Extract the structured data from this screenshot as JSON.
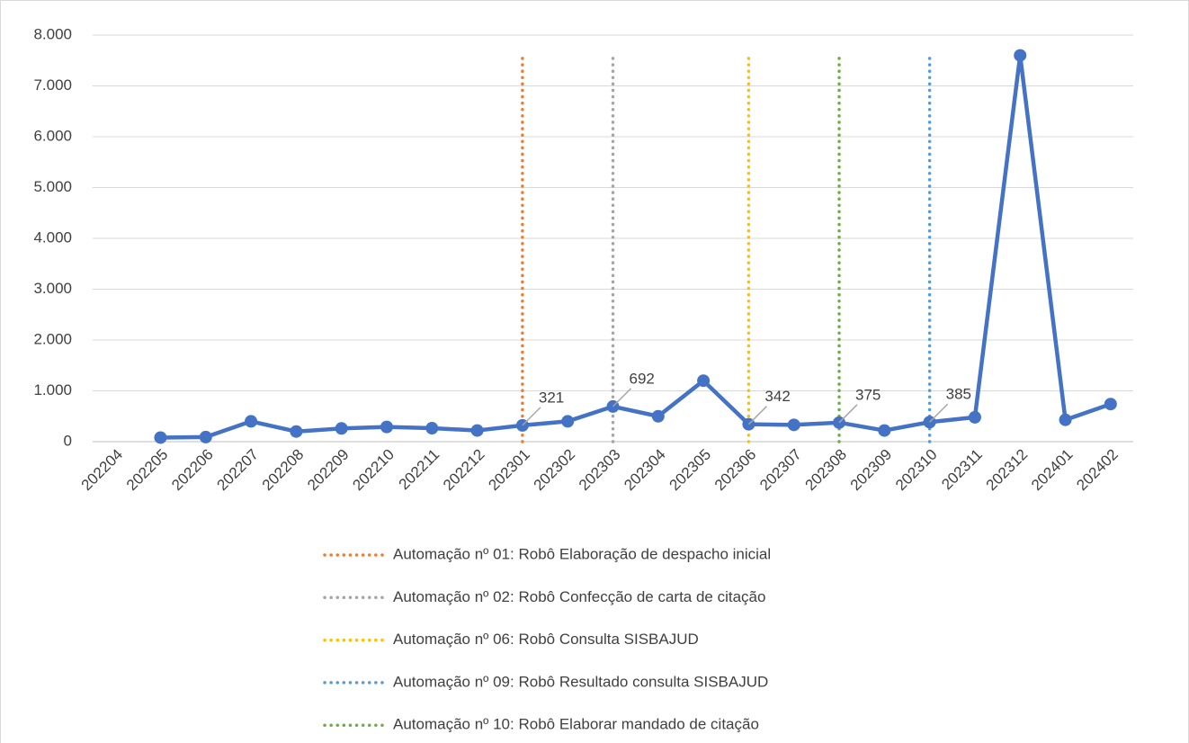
{
  "chart_data": {
    "type": "line",
    "categories": [
      "202204",
      "202205",
      "202206",
      "202207",
      "202208",
      "202209",
      "202210",
      "202211",
      "202212",
      "202301",
      "202302",
      "202303",
      "202304",
      "202305",
      "202306",
      "202307",
      "202308",
      "202309",
      "202310",
      "202311",
      "202312",
      "202401",
      "202402"
    ],
    "series": [
      {
        "name": null,
        "color": "#4472c4",
        "values": [
          null,
          80,
          90,
          400,
          200,
          260,
          290,
          265,
          220,
          321,
          400,
          692,
          500,
          1200,
          342,
          330,
          375,
          220,
          385,
          480,
          7600,
          430,
          740
        ],
        "data_labels": [
          null,
          null,
          null,
          null,
          null,
          null,
          null,
          null,
          null,
          true,
          null,
          true,
          null,
          null,
          true,
          null,
          true,
          null,
          true,
          null,
          null,
          null,
          null
        ]
      }
    ],
    "markers": [
      {
        "name": "Automação nº 01: Robô Elaboração de despacho inicial",
        "color": "#ed7d31",
        "category": 9,
        "value": 7600
      },
      {
        "name": "Automação nº 02: Robô Confecção de carta de citação",
        "color": "#a5a5a5",
        "category": 11,
        "value": 7600
      },
      {
        "name": "Automação nº 06: Robô Consulta SISBAJUD",
        "color": "#ffc000",
        "category": 14,
        "value": 7600
      },
      {
        "name": "Automação nº 09: Robô Resultado consulta SISBAJUD",
        "color": "#5b9bd5",
        "category": 18,
        "value": 7600
      },
      {
        "name": "Automação nº 10: Robô Elaborar mandado de citação",
        "color": "#70ad47",
        "category": 16,
        "value": 7600
      }
    ],
    "ylim": [
      0,
      8000
    ],
    "yticks": [
      0,
      {
        "value": 1000,
        "label": "1.000"
      },
      {
        "value": 2000,
        "label": "2.000"
      },
      {
        "value": 3000,
        "label": "3.000"
      },
      {
        "value": 4000,
        "label": "4.000"
      },
      {
        "value": 5000,
        "label": "5.000"
      },
      {
        "value": 6000,
        "label": "6.000"
      },
      {
        "value": 7000,
        "label": "7.000"
      },
      {
        "value": 8000,
        "label": "8.000"
      }
    ],
    "grid": true
  }
}
